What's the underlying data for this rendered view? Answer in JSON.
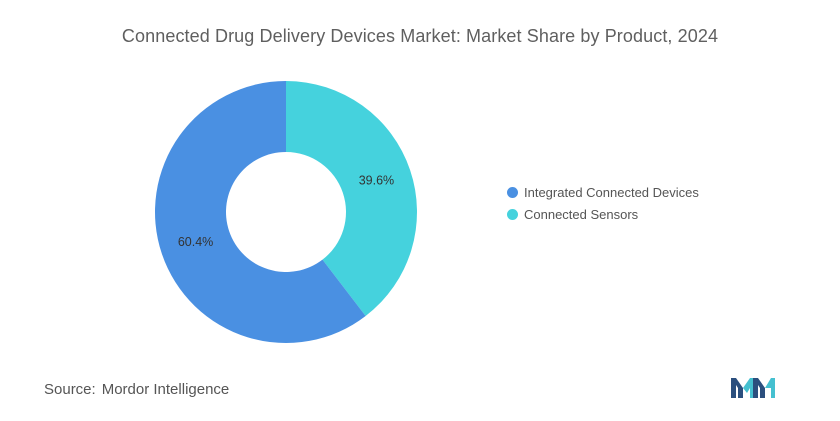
{
  "title": "Connected Drug Delivery Devices Market: Market Share by Product, 2024",
  "source": {
    "label": "Source:",
    "value": "Mordor Intelligence"
  },
  "logo": {
    "icon": "mordor-intelligence-logo"
  },
  "chart_data": {
    "type": "pie",
    "variant": "donut",
    "title": "Connected Drug Delivery Devices Market: Market Share by Product, 2024",
    "legend_position": "right",
    "slices": [
      {
        "label": "Connected Sensors",
        "value": 39.6,
        "display": "39.6%",
        "color": "#45D2DD"
      },
      {
        "label": "Integrated Connected Devices",
        "value": 60.4,
        "display": "60.4%",
        "color": "#4A90E2"
      }
    ],
    "legend": [
      {
        "label": "Integrated Connected Devices",
        "color": "#4A90E2"
      },
      {
        "label": "Connected Sensors",
        "color": "#45D2DD"
      }
    ]
  }
}
